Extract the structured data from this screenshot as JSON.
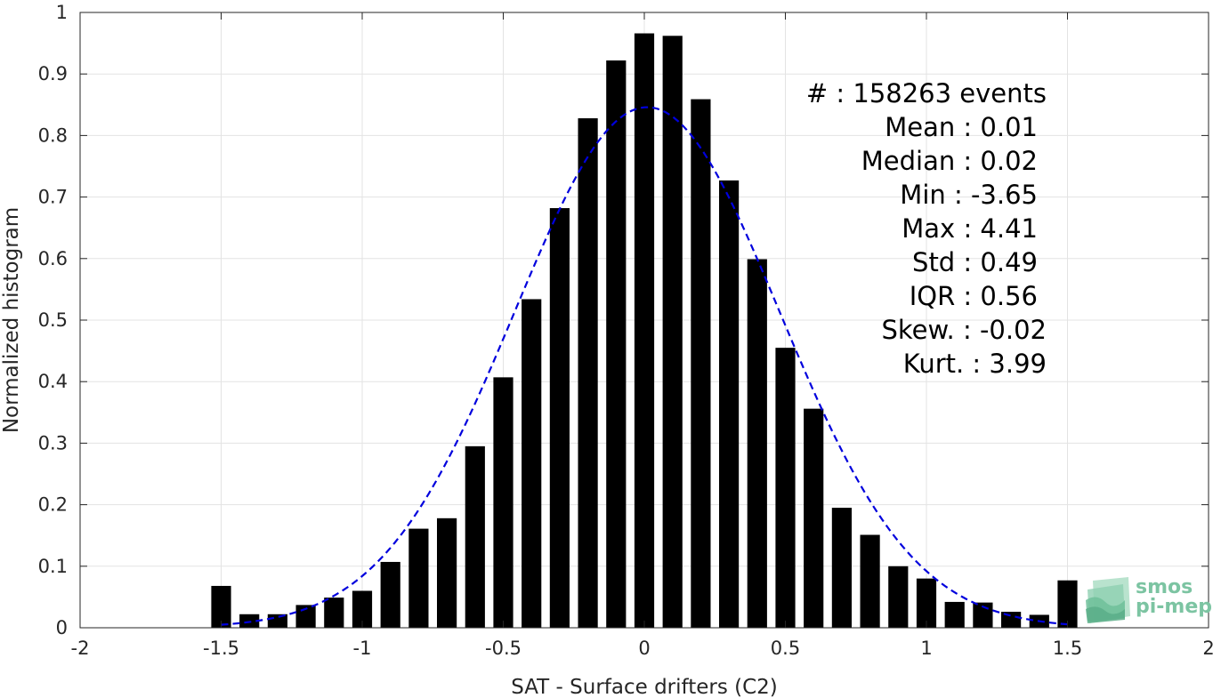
{
  "chart_data": {
    "type": "bar",
    "title": "",
    "xlabel": "SAT - Surface drifters (C2)",
    "ylabel": "Normalized histogram",
    "xlim": [
      -2,
      2
    ],
    "ylim": [
      0,
      1
    ],
    "grid": true,
    "xticks": [
      -2,
      -1.5,
      -1,
      -0.5,
      0,
      0.5,
      1,
      1.5,
      2
    ],
    "xtick_labels": [
      "-2",
      "-1.5",
      "-1",
      "-0.5",
      "0",
      "0.5",
      "1",
      "1.5",
      "2"
    ],
    "yticks": [
      0,
      0.1,
      0.2,
      0.3,
      0.4,
      0.5,
      0.6,
      0.7,
      0.8,
      0.9,
      1
    ],
    "ytick_labels": [
      "0",
      "0.1",
      "0.2",
      "0.3",
      "0.4",
      "0.5",
      "0.6",
      "0.7",
      "0.8",
      "0.9",
      "1"
    ],
    "bar_color": "#000000",
    "fit_color": "#0000dd",
    "bar_width": 0.07,
    "x": [
      -1.5,
      -1.4,
      -1.3,
      -1.2,
      -1.1,
      -1.0,
      -0.9,
      -0.8,
      -0.7,
      -0.6,
      -0.5,
      -0.4,
      -0.3,
      -0.2,
      -0.1,
      0.0,
      0.1,
      0.2,
      0.3,
      0.4,
      0.5,
      0.6,
      0.7,
      0.8,
      0.9,
      1.0,
      1.1,
      1.2,
      1.3,
      1.4,
      1.5
    ],
    "values": [
      0.068,
      0.022,
      0.022,
      0.037,
      0.049,
      0.06,
      0.107,
      0.161,
      0.178,
      0.295,
      0.407,
      0.534,
      0.682,
      0.828,
      0.922,
      0.966,
      0.962,
      0.859,
      0.727,
      0.599,
      0.455,
      0.356,
      0.195,
      0.151,
      0.1,
      0.08,
      0.042,
      0.041,
      0.026,
      0.021,
      0.077
    ],
    "fit": {
      "style": "dashed",
      "mean": 0.01,
      "std": 0.47,
      "peak": 0.846,
      "x_range": [
        -1.5,
        1.5
      ]
    },
    "annotations": [
      "#  : 158263 events",
      "Mean : 0.01",
      "Median : 0.02",
      "Min : -3.65",
      "Max : 4.41",
      "Std : 0.49",
      "IQR : 0.56",
      "Skew. : -0.02",
      "Kurt. : 3.99"
    ]
  },
  "logo": {
    "line1": "smos",
    "line2": "pi-mep",
    "color": "#7cc4a2"
  }
}
